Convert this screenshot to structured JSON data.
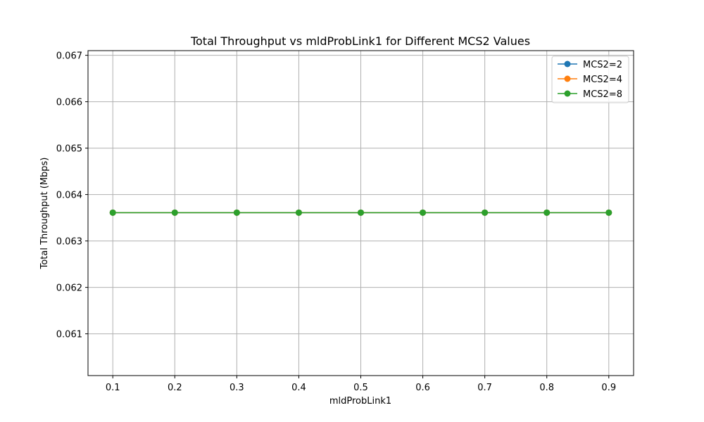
{
  "chart_data": {
    "type": "line",
    "title": "Total Throughput vs mldProbLink1 for Different MCS2 Values",
    "xlabel": "mldProbLink1",
    "ylabel": "Total Throughput (Mbps)",
    "x": [
      0.1,
      0.2,
      0.3,
      0.4,
      0.5,
      0.6,
      0.7,
      0.8,
      0.9
    ],
    "xlim": [
      0.06,
      0.94
    ],
    "ylim": [
      0.0601,
      0.0671
    ],
    "xticks": [
      "0.1",
      "0.2",
      "0.3",
      "0.4",
      "0.5",
      "0.6",
      "0.7",
      "0.8",
      "0.9"
    ],
    "yticks": [
      "0.061",
      "0.062",
      "0.063",
      "0.064",
      "0.065",
      "0.066",
      "0.067"
    ],
    "grid": true,
    "legend_position": "top-right",
    "series": [
      {
        "name": "MCS2=2",
        "color": "#1f77b4",
        "marker": "circle",
        "values": [
          0.06361,
          0.06361,
          0.06361,
          0.06361,
          0.06361,
          0.06361,
          0.06361,
          0.06361,
          0.06361
        ]
      },
      {
        "name": "MCS2=4",
        "color": "#ff7f0e",
        "marker": "circle",
        "values": [
          0.06361,
          0.06361,
          0.06361,
          0.06361,
          0.06361,
          0.06361,
          0.06361,
          0.06361,
          0.06361
        ]
      },
      {
        "name": "MCS2=8",
        "color": "#2ca02c",
        "marker": "circle",
        "values": [
          0.06361,
          0.06361,
          0.06361,
          0.06361,
          0.06361,
          0.06361,
          0.06361,
          0.06361,
          0.06361
        ]
      }
    ]
  }
}
